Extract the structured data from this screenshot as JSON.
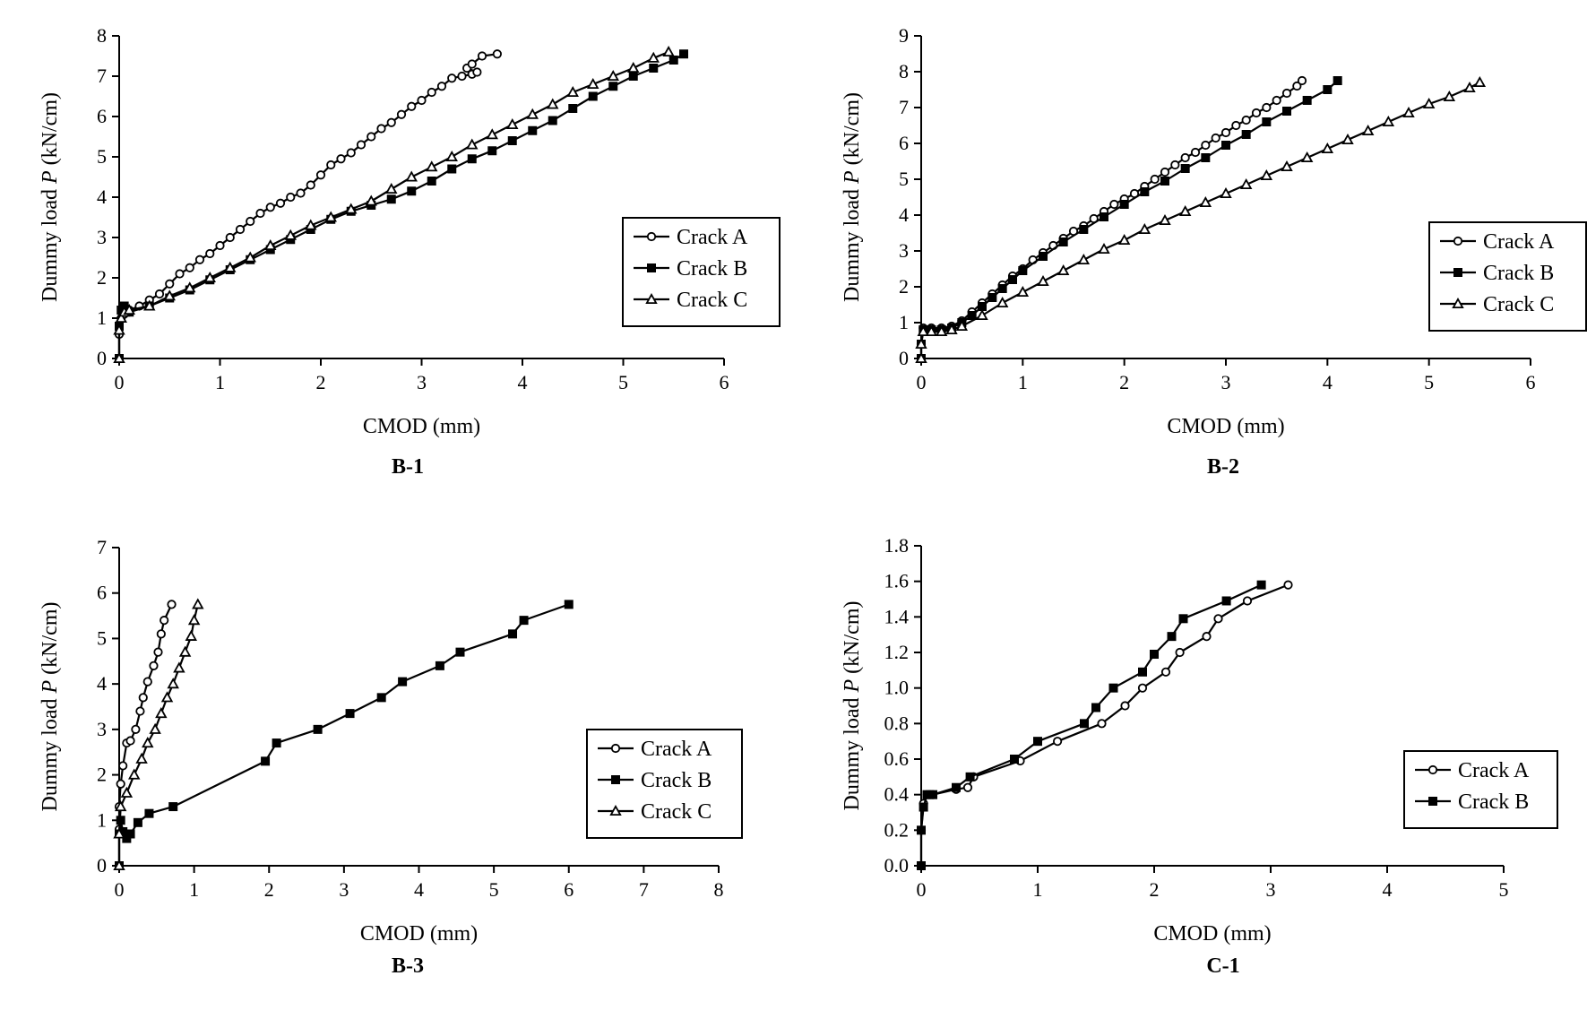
{
  "chart_data": [
    {
      "type": "line",
      "title": "B-1",
      "xlabel": "CMOD (mm)",
      "ylabel_pre": "Dummy load ",
      "ylabel_var": "P",
      "ylabel_post": " (kN/cm)",
      "xlim": [
        0,
        6
      ],
      "ylim": [
        0,
        8
      ],
      "xticks": [
        "0",
        "1",
        "2",
        "3",
        "4",
        "5",
        "6"
      ],
      "yticks": [
        "0",
        "1",
        "2",
        "3",
        "4",
        "5",
        "6",
        "7",
        "8"
      ],
      "legend_position": "right",
      "series": [
        {
          "name": "Crack A",
          "marker": "circle",
          "x": [
            0,
            0,
            0.02,
            0.05,
            0.1,
            0.2,
            0.3,
            0.4,
            0.5,
            0.6,
            0.7,
            0.8,
            0.9,
            1.0,
            1.1,
            1.2,
            1.3,
            1.4,
            1.5,
            1.6,
            1.7,
            1.8,
            1.9,
            2.0,
            2.1,
            2.2,
            2.3,
            2.4,
            2.5,
            2.6,
            2.7,
            2.8,
            2.9,
            3.0,
            3.1,
            3.2,
            3.3,
            3.4,
            3.5,
            3.55,
            3.45,
            3.5,
            3.6,
            3.75
          ],
          "y": [
            0,
            0.6,
            1.0,
            1.1,
            1.2,
            1.3,
            1.45,
            1.6,
            1.85,
            2.1,
            2.25,
            2.45,
            2.6,
            2.8,
            3.0,
            3.2,
            3.4,
            3.6,
            3.75,
            3.85,
            4.0,
            4.1,
            4.3,
            4.55,
            4.8,
            4.95,
            5.1,
            5.3,
            5.5,
            5.7,
            5.85,
            6.05,
            6.25,
            6.4,
            6.6,
            6.75,
            6.95,
            7.0,
            7.05,
            7.1,
            7.2,
            7.3,
            7.5,
            7.55
          ]
        },
        {
          "name": "Crack B",
          "marker": "square",
          "x": [
            0,
            0,
            0.02,
            0.05,
            0.1,
            0.3,
            0.5,
            0.7,
            0.9,
            1.1,
            1.3,
            1.5,
            1.7,
            1.9,
            2.1,
            2.3,
            2.5,
            2.7,
            2.9,
            3.1,
            3.3,
            3.5,
            3.7,
            3.9,
            4.1,
            4.3,
            4.5,
            4.7,
            4.9,
            5.1,
            5.3,
            5.5,
            5.6
          ],
          "y": [
            0,
            0.8,
            1.2,
            1.3,
            1.15,
            1.3,
            1.5,
            1.7,
            1.95,
            2.2,
            2.45,
            2.7,
            2.95,
            3.2,
            3.45,
            3.65,
            3.8,
            3.95,
            4.15,
            4.4,
            4.7,
            4.95,
            5.15,
            5.4,
            5.65,
            5.9,
            6.2,
            6.5,
            6.75,
            7.0,
            7.2,
            7.4,
            7.55
          ]
        },
        {
          "name": "Crack C",
          "marker": "triangle",
          "x": [
            0,
            0,
            0.02,
            0.05,
            0.1,
            0.3,
            0.5,
            0.7,
            0.9,
            1.1,
            1.3,
            1.5,
            1.7,
            1.9,
            2.1,
            2.3,
            2.5,
            2.7,
            2.9,
            3.1,
            3.3,
            3.5,
            3.7,
            3.9,
            4.1,
            4.3,
            4.5,
            4.7,
            4.9,
            5.1,
            5.3,
            5.45
          ],
          "y": [
            0,
            0.7,
            1.0,
            1.15,
            1.2,
            1.3,
            1.55,
            1.75,
            2.0,
            2.25,
            2.5,
            2.8,
            3.05,
            3.3,
            3.5,
            3.7,
            3.9,
            4.2,
            4.5,
            4.75,
            5.0,
            5.3,
            5.55,
            5.8,
            6.05,
            6.3,
            6.6,
            6.8,
            7.0,
            7.2,
            7.45,
            7.6
          ]
        }
      ]
    },
    {
      "type": "line",
      "title": "B-2",
      "xlabel": "CMOD (mm)",
      "ylabel_pre": "Dummy load ",
      "ylabel_var": "P",
      "ylabel_post": " (kN/cm)",
      "xlim": [
        0,
        6
      ],
      "ylim": [
        0,
        9
      ],
      "xticks": [
        "0",
        "1",
        "2",
        "3",
        "4",
        "5",
        "6"
      ],
      "yticks": [
        "0",
        "1",
        "2",
        "3",
        "4",
        "5",
        "6",
        "7",
        "8",
        "9"
      ],
      "legend_position": "right",
      "series": [
        {
          "name": "Crack A",
          "marker": "circle",
          "x": [
            0,
            0,
            0.02,
            0.1,
            0.2,
            0.3,
            0.4,
            0.5,
            0.6,
            0.7,
            0.8,
            0.9,
            1.0,
            1.1,
            1.2,
            1.3,
            1.4,
            1.5,
            1.6,
            1.7,
            1.8,
            1.9,
            2.0,
            2.1,
            2.2,
            2.3,
            2.4,
            2.5,
            2.6,
            2.7,
            2.8,
            2.9,
            3.0,
            3.1,
            3.2,
            3.3,
            3.4,
            3.5,
            3.6,
            3.7,
            3.75
          ],
          "y": [
            0,
            0.4,
            0.85,
            0.85,
            0.85,
            0.9,
            1.05,
            1.3,
            1.55,
            1.8,
            2.05,
            2.3,
            2.5,
            2.75,
            2.95,
            3.15,
            3.35,
            3.55,
            3.7,
            3.9,
            4.1,
            4.3,
            4.45,
            4.6,
            4.8,
            5.0,
            5.2,
            5.4,
            5.6,
            5.75,
            5.95,
            6.15,
            6.3,
            6.5,
            6.65,
            6.85,
            7.0,
            7.2,
            7.4,
            7.6,
            7.75
          ]
        },
        {
          "name": "Crack B",
          "marker": "square",
          "x": [
            0,
            0,
            0.02,
            0.1,
            0.2,
            0.3,
            0.4,
            0.5,
            0.6,
            0.7,
            0.8,
            0.9,
            1.0,
            1.2,
            1.4,
            1.6,
            1.8,
            2.0,
            2.2,
            2.4,
            2.6,
            2.8,
            3.0,
            3.2,
            3.4,
            3.6,
            3.8,
            4.0,
            4.1
          ],
          "y": [
            0,
            0.4,
            0.8,
            0.8,
            0.8,
            0.85,
            1.0,
            1.2,
            1.45,
            1.7,
            1.95,
            2.2,
            2.45,
            2.85,
            3.25,
            3.6,
            3.95,
            4.3,
            4.65,
            4.95,
            5.3,
            5.6,
            5.95,
            6.25,
            6.6,
            6.9,
            7.2,
            7.5,
            7.75
          ]
        },
        {
          "name": "Crack C",
          "marker": "triangle",
          "x": [
            0,
            0,
            0.02,
            0.1,
            0.2,
            0.3,
            0.4,
            0.6,
            0.8,
            1.0,
            1.2,
            1.4,
            1.6,
            1.8,
            2.0,
            2.2,
            2.4,
            2.6,
            2.8,
            3.0,
            3.2,
            3.4,
            3.6,
            3.8,
            4.0,
            4.2,
            4.4,
            4.6,
            4.8,
            5.0,
            5.2,
            5.4,
            5.5
          ],
          "y": [
            0,
            0.4,
            0.75,
            0.75,
            0.75,
            0.8,
            0.9,
            1.2,
            1.55,
            1.85,
            2.15,
            2.45,
            2.75,
            3.05,
            3.3,
            3.6,
            3.85,
            4.1,
            4.35,
            4.6,
            4.85,
            5.1,
            5.35,
            5.6,
            5.85,
            6.1,
            6.35,
            6.6,
            6.85,
            7.1,
            7.3,
            7.55,
            7.7
          ]
        }
      ]
    },
    {
      "type": "line",
      "title": "B-3",
      "xlabel": "CMOD (mm)",
      "ylabel_pre": "Dummy load ",
      "ylabel_var": "P",
      "ylabel_post": " (kN/cm)",
      "xlim": [
        0,
        8
      ],
      "ylim": [
        0,
        7
      ],
      "xticks": [
        "0",
        "1",
        "2",
        "3",
        "4",
        "5",
        "6",
        "7",
        "8"
      ],
      "yticks": [
        "0",
        "1",
        "2",
        "3",
        "4",
        "5",
        "6",
        "7"
      ],
      "legend_position": "right",
      "series": [
        {
          "name": "Crack A",
          "marker": "circle",
          "x": [
            0,
            0,
            0,
            0.02,
            0.05,
            0.1,
            0.15,
            0.22,
            0.28,
            0.32,
            0.38,
            0.46,
            0.52,
            0.56,
            0.6,
            0.7
          ],
          "y": [
            0,
            0.8,
            1.3,
            1.8,
            2.2,
            2.7,
            2.75,
            3.0,
            3.4,
            3.7,
            4.05,
            4.4,
            4.7,
            5.1,
            5.4,
            5.75
          ]
        },
        {
          "name": "Crack B",
          "marker": "square",
          "x": [
            0,
            0,
            0.02,
            0.05,
            0.1,
            0.15,
            0.25,
            0.4,
            0.72,
            1.95,
            2.1,
            2.65,
            3.08,
            3.5,
            3.78,
            4.28,
            4.55,
            5.25,
            5.4,
            6.0
          ],
          "y": [
            0,
            0.7,
            1.0,
            0.75,
            0.6,
            0.7,
            0.95,
            1.15,
            1.3,
            2.3,
            2.7,
            3.0,
            3.35,
            3.7,
            4.05,
            4.4,
            4.7,
            5.1,
            5.4,
            5.75
          ]
        },
        {
          "name": "Crack C",
          "marker": "triangle",
          "x": [
            0,
            0,
            0.02,
            0.1,
            0.2,
            0.3,
            0.38,
            0.48,
            0.56,
            0.64,
            0.72,
            0.8,
            0.88,
            0.96,
            1.0,
            1.05
          ],
          "y": [
            0,
            0.7,
            1.3,
            1.6,
            2.0,
            2.35,
            2.7,
            3.0,
            3.35,
            3.7,
            4.0,
            4.35,
            4.7,
            5.05,
            5.4,
            5.75
          ]
        }
      ]
    },
    {
      "type": "line",
      "title": "C-1",
      "xlabel": "CMOD (mm)",
      "ylabel_pre": "Dummy load ",
      "ylabel_var": "P",
      "ylabel_post": " (kN/cm)",
      "xlim": [
        0,
        5
      ],
      "ylim": [
        0,
        1.8
      ],
      "xticks": [
        "0",
        "1",
        "2",
        "3",
        "4",
        "5"
      ],
      "yticks": [
        "0.0",
        "0.2",
        "0.4",
        "0.6",
        "0.8",
        "1.0",
        "1.2",
        "1.4",
        "1.6",
        "1.8"
      ],
      "legend_position": "right",
      "series": [
        {
          "name": "Crack A",
          "marker": "circle",
          "x": [
            0,
            0,
            0.02,
            0.05,
            0.1,
            0.3,
            0.4,
            0.45,
            0.85,
            1.17,
            1.55,
            1.75,
            1.9,
            2.1,
            2.22,
            2.45,
            2.55,
            2.8,
            3.15
          ],
          "y": [
            0,
            0.2,
            0.35,
            0.4,
            0.4,
            0.43,
            0.44,
            0.5,
            0.59,
            0.7,
            0.8,
            0.9,
            1.0,
            1.09,
            1.2,
            1.29,
            1.39,
            1.49,
            1.58
          ]
        },
        {
          "name": "Crack B",
          "marker": "square",
          "x": [
            0,
            0,
            0.02,
            0.05,
            0.1,
            0.3,
            0.42,
            0.8,
            1.0,
            1.4,
            1.5,
            1.65,
            1.9,
            2.0,
            2.15,
            2.25,
            2.62,
            2.92
          ],
          "y": [
            0,
            0.2,
            0.33,
            0.4,
            0.4,
            0.44,
            0.5,
            0.6,
            0.7,
            0.8,
            0.89,
            1.0,
            1.09,
            1.19,
            1.29,
            1.39,
            1.49,
            1.58
          ]
        }
      ]
    }
  ]
}
